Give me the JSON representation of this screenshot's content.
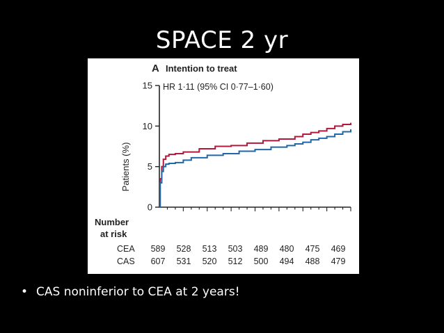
{
  "slide": {
    "title": "SPACE 2 yr",
    "bullet": "CAS noninferior to CEA at 2 years!"
  },
  "colors": {
    "cea": "#b0183c",
    "cas": "#2166a8"
  },
  "chart_data": {
    "type": "line",
    "panel_label": "A",
    "title": "Intention to treat",
    "annotation": "HR 1·11 (95% CI 0·77–1·60)",
    "ylabel": "Patients (%)",
    "xlabel": "",
    "ylim": [
      0,
      15
    ],
    "xlim": [
      0,
      24
    ],
    "yticks": [
      0,
      5,
      10,
      15
    ],
    "grid": false,
    "series": [
      {
        "name": "CEA",
        "x": [
          0,
          0.1,
          0.3,
          0.5,
          0.8,
          1.2,
          2,
          3,
          5,
          7,
          9,
          11,
          13,
          15,
          17,
          18,
          19,
          20,
          21,
          22,
          23,
          24
        ],
        "values": [
          0,
          3.5,
          5.0,
          5.9,
          6.3,
          6.5,
          6.6,
          6.8,
          7.2,
          7.5,
          7.6,
          7.9,
          8.2,
          8.4,
          8.7,
          9.0,
          9.2,
          9.4,
          9.7,
          10.0,
          10.2,
          10.4
        ]
      },
      {
        "name": "CAS",
        "x": [
          0,
          0.1,
          0.3,
          0.5,
          0.8,
          1.2,
          2,
          3,
          4,
          6,
          8,
          10,
          12,
          14,
          16,
          17,
          18,
          19,
          20,
          21,
          22,
          23,
          24
        ],
        "values": [
          0,
          3.0,
          4.4,
          5.0,
          5.3,
          5.4,
          5.5,
          5.8,
          6.1,
          6.4,
          6.6,
          6.9,
          7.1,
          7.4,
          7.6,
          7.8,
          8.0,
          8.3,
          8.5,
          8.7,
          9.0,
          9.3,
          9.6
        ]
      }
    ],
    "risk_table": {
      "header": [
        "Number",
        "at risk"
      ],
      "rows": [
        {
          "label": "CEA",
          "values": [
            "589",
            "528",
            "513",
            "503",
            "489",
            "480",
            "475",
            "469"
          ]
        },
        {
          "label": "CAS",
          "values": [
            "607",
            "531",
            "520",
            "512",
            "500",
            "494",
            "488",
            "479"
          ]
        }
      ]
    }
  }
}
